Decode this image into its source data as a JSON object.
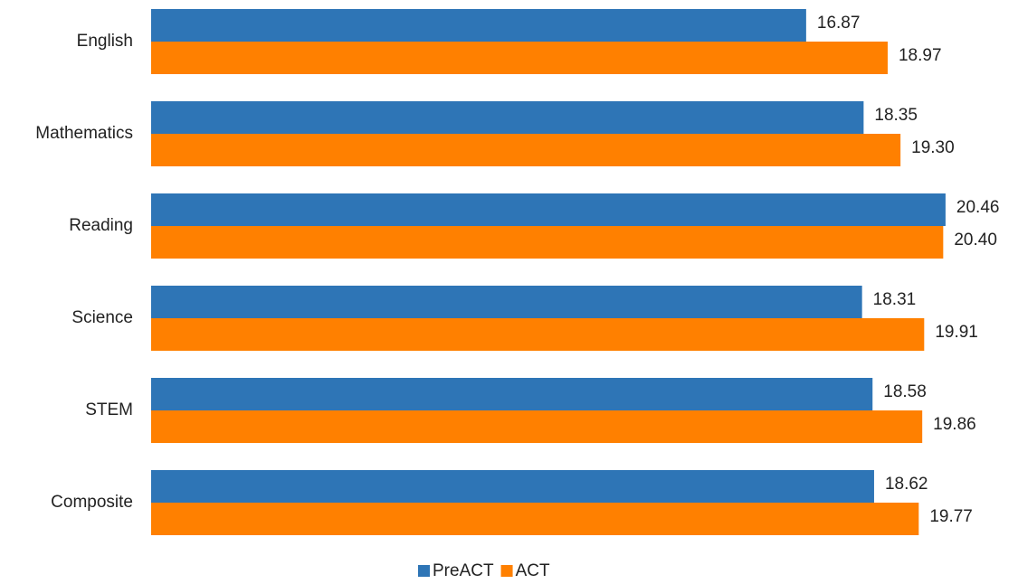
{
  "chart_data": {
    "type": "bar",
    "orientation": "horizontal",
    "categories": [
      "English",
      "Mathematics",
      "Reading",
      "Science",
      "STEM",
      "Composite"
    ],
    "series": [
      {
        "name": "PreACT",
        "color": "#2e75b6",
        "values": [
          16.87,
          18.35,
          20.46,
          18.31,
          18.58,
          18.62
        ],
        "value_labels": [
          "16.87",
          "18.35",
          "20.46",
          "18.31",
          "18.58",
          "18.62"
        ]
      },
      {
        "name": "ACT",
        "color": "#ff8000",
        "values": [
          18.97,
          19.3,
          20.4,
          19.91,
          19.86,
          19.77
        ],
        "value_labels": [
          "18.97",
          "19.30",
          "20.40",
          "19.91",
          "19.86",
          "19.77"
        ]
      }
    ],
    "xlim": [
      0,
      22
    ],
    "legend": "bottom"
  }
}
